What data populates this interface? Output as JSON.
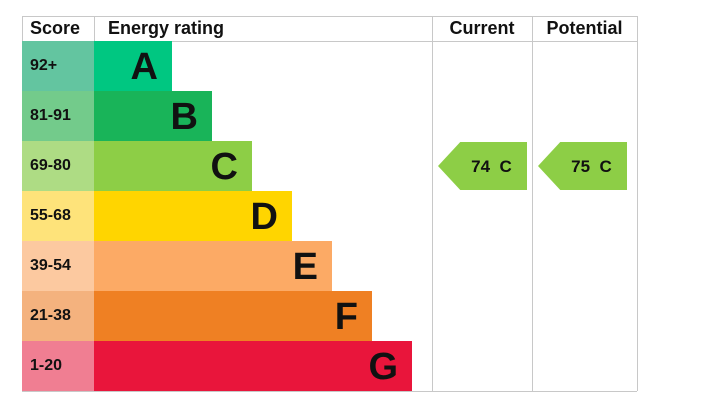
{
  "chart_data": {
    "type": "table",
    "headers": {
      "score": "Score",
      "rating": "Energy rating",
      "current": "Current",
      "potential": "Potential"
    },
    "bands": [
      {
        "score": "92+",
        "letter": "A",
        "color": "#00c781",
        "score_color": "#63c5a0"
      },
      {
        "score": "81-91",
        "letter": "B",
        "color": "#19b459",
        "score_color": "#73cb8b"
      },
      {
        "score": "69-80",
        "letter": "C",
        "color": "#8dce46",
        "score_color": "#aedc84"
      },
      {
        "score": "55-68",
        "letter": "D",
        "color": "#ffd500",
        "score_color": "#fee37a"
      },
      {
        "score": "39-54",
        "letter": "E",
        "color": "#fcaa65",
        "score_color": "#fcc9a0"
      },
      {
        "score": "21-38",
        "letter": "F",
        "color": "#ef8023",
        "score_color": "#f4b27e"
      },
      {
        "score": "1-20",
        "letter": "G",
        "color": "#e9153b",
        "score_color": "#f07e92"
      }
    ],
    "current": {
      "value": 74,
      "band": "C",
      "label": "74  C",
      "color": "#8dce46"
    },
    "potential": {
      "value": 75,
      "band": "C",
      "label": "75  C",
      "color": "#8dce46"
    }
  }
}
